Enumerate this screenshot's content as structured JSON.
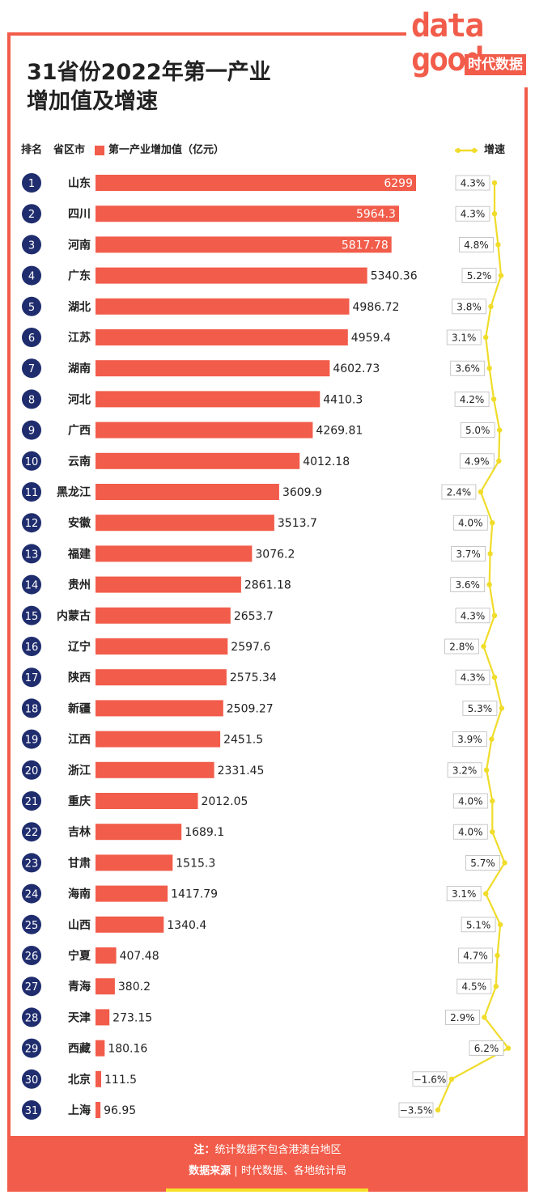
{
  "title": {
    "line1": "31省份2022年第一产业",
    "line2": "增加值及增速"
  },
  "logo": {
    "line1": "data",
    "line2": "good",
    "cn": "时代数据"
  },
  "legend": {
    "rank": "排名",
    "province": "省区市",
    "bar_series": "第一产业增加值（亿元）",
    "line_series": "增速"
  },
  "colors": {
    "bar": "#f25c4a",
    "line": "#f0dc2a",
    "badge": "#1f2d6e"
  },
  "chart_data": {
    "type": "bar",
    "orientation": "horizontal",
    "categories": [
      "山东",
      "四川",
      "河南",
      "广东",
      "湖北",
      "江苏",
      "湖南",
      "河北",
      "广西",
      "云南",
      "黑龙江",
      "安徽",
      "福建",
      "贵州",
      "内蒙古",
      "辽宁",
      "陕西",
      "新疆",
      "江西",
      "浙江",
      "重庆",
      "吉林",
      "甘肃",
      "海南",
      "山西",
      "宁夏",
      "青海",
      "天津",
      "西藏",
      "北京",
      "上海"
    ],
    "ranks": [
      1,
      2,
      3,
      4,
      5,
      6,
      7,
      8,
      9,
      10,
      11,
      12,
      13,
      14,
      15,
      16,
      17,
      18,
      19,
      20,
      21,
      22,
      23,
      24,
      25,
      26,
      27,
      28,
      29,
      30,
      31
    ],
    "series": [
      {
        "name": "第一产业增加值（亿元）",
        "type": "bar",
        "values": [
          6299,
          5964.3,
          5817.78,
          5340.36,
          4986.72,
          4959.4,
          4602.73,
          4410.3,
          4269.81,
          4012.18,
          3609.9,
          3513.7,
          3076.2,
          2861.18,
          2653.7,
          2597.6,
          2575.34,
          2509.27,
          2451.5,
          2331.45,
          2012.05,
          1689.1,
          1515.3,
          1417.79,
          1340.4,
          407.48,
          380.2,
          273.15,
          180.16,
          111.5,
          96.95
        ],
        "labels": [
          "6299",
          "5964.3",
          "5817.78",
          "5340.36",
          "4986.72",
          "4959.4",
          "4602.73",
          "4410.3",
          "4269.81",
          "4012.18",
          "3609.9",
          "3513.7",
          "3076.2",
          "2861.18",
          "2653.7",
          "2597.6",
          "2575.34",
          "2509.27",
          "2451.5",
          "2331.45",
          "2012.05",
          "1689.1",
          "1515.3",
          "1417.79",
          "1340.4",
          "407.48",
          "380.2",
          "273.15",
          "180.16",
          "111.5",
          "96.95"
        ]
      },
      {
        "name": "增速",
        "type": "line",
        "unit": "%",
        "values": [
          4.3,
          4.3,
          4.8,
          5.2,
          3.8,
          3.1,
          3.6,
          4.2,
          5.0,
          4.9,
          2.4,
          4.0,
          3.7,
          3.6,
          4.3,
          2.8,
          4.3,
          5.3,
          3.9,
          3.2,
          4.0,
          4.0,
          5.7,
          3.1,
          5.1,
          4.7,
          4.5,
          2.9,
          6.2,
          -1.6,
          -3.5
        ],
        "labels": [
          "4.3%",
          "4.3%",
          "4.8%",
          "5.2%",
          "3.8%",
          "3.1%",
          "3.6%",
          "4.2%",
          "5.0%",
          "4.9%",
          "2.4%",
          "4.0%",
          "3.7%",
          "3.6%",
          "4.3%",
          "2.8%",
          "4.3%",
          "5.3%",
          "3.9%",
          "3.2%",
          "4.0%",
          "4.0%",
          "5.7%",
          "3.1%",
          "5.1%",
          "4.7%",
          "4.5%",
          "2.9%",
          "6.2%",
          "−1.6%",
          "−3.5%"
        ]
      }
    ],
    "grid": false,
    "legend_position": "top"
  },
  "footer": {
    "note_label": "注：",
    "note_text": "统计数据不包含港澳台地区",
    "source_label": "数据来源",
    "source_text": "时代数据、各地统计局"
  }
}
